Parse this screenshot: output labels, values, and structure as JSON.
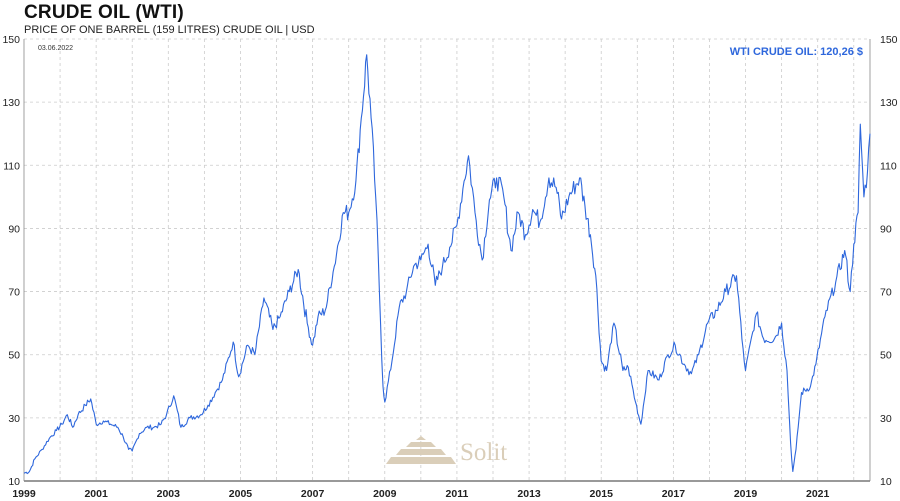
{
  "header": {
    "title": "CRUDE OIL (WTI)",
    "subtitle": "PRICE OF ONE BARREL (159 LITRES) CRUDE OIL | USD"
  },
  "date_label": "03.06.2022",
  "current_label": "WTI CRUDE OIL: 120,26 $",
  "watermark": {
    "text": "Solit",
    "icon": "pyramid-logo-icon"
  },
  "colors": {
    "line": "#2e67dc",
    "current_label": "#2e67dc",
    "grid": "#cccccc",
    "watermark": "#d9ccb6"
  },
  "chart_data": {
    "type": "line",
    "title": "CRUDE OIL (WTI)",
    "subtitle": "PRICE OF ONE BARREL (159 LITRES) CRUDE OIL | USD",
    "xlabel": "",
    "ylabel": "",
    "xlim": [
      1999.0,
      2022.45
    ],
    "ylim": [
      10,
      150
    ],
    "x_ticks": [
      "1999",
      "2001",
      "2003",
      "2005",
      "2007",
      "2009",
      "2011",
      "2013",
      "2015",
      "2017",
      "2019",
      "2021"
    ],
    "y_ticks": [
      10,
      30,
      50,
      70,
      90,
      110,
      130,
      150
    ],
    "grid": true,
    "y_axis_both_sides": true,
    "series": [
      {
        "points": [
          [
            1999.0,
            12.5
          ],
          [
            1999.15,
            13
          ],
          [
            1999.3,
            17
          ],
          [
            1999.5,
            20
          ],
          [
            1999.7,
            23.5
          ],
          [
            1999.9,
            26
          ],
          [
            2000.05,
            28
          ],
          [
            2000.2,
            31
          ],
          [
            2000.35,
            27
          ],
          [
            2000.5,
            31
          ],
          [
            2000.7,
            34
          ],
          [
            2000.85,
            36
          ],
          [
            2001.0,
            28
          ],
          [
            2001.2,
            29
          ],
          [
            2001.4,
            28
          ],
          [
            2001.6,
            27
          ],
          [
            2001.75,
            24
          ],
          [
            2001.9,
            20
          ],
          [
            2002.0,
            19.5
          ],
          [
            2002.2,
            25
          ],
          [
            2002.4,
            27
          ],
          [
            2002.6,
            27
          ],
          [
            2002.8,
            28
          ],
          [
            2002.95,
            31
          ],
          [
            2003.15,
            37
          ],
          [
            2003.35,
            27
          ],
          [
            2003.6,
            30
          ],
          [
            2003.9,
            31
          ],
          [
            2004.1,
            34
          ],
          [
            2004.3,
            38
          ],
          [
            2004.5,
            42
          ],
          [
            2004.8,
            54
          ],
          [
            2004.95,
            43
          ],
          [
            2005.2,
            53
          ],
          [
            2005.4,
            50
          ],
          [
            2005.65,
            68
          ],
          [
            2005.9,
            58
          ],
          [
            2006.1,
            62
          ],
          [
            2006.35,
            70
          ],
          [
            2006.6,
            77
          ],
          [
            2006.85,
            60
          ],
          [
            2007.0,
            53
          ],
          [
            2007.15,
            62
          ],
          [
            2007.35,
            64
          ],
          [
            2007.6,
            78
          ],
          [
            2007.85,
            95
          ],
          [
            2008.0,
            95
          ],
          [
            2008.2,
            105
          ],
          [
            2008.35,
            125
          ],
          [
            2008.5,
            145
          ],
          [
            2008.62,
            125
          ],
          [
            2008.75,
            100
          ],
          [
            2008.85,
            70
          ],
          [
            2008.95,
            40
          ],
          [
            2009.0,
            35
          ],
          [
            2009.2,
            48
          ],
          [
            2009.4,
            65
          ],
          [
            2009.6,
            70
          ],
          [
            2009.8,
            78
          ],
          [
            2010.0,
            80
          ],
          [
            2010.2,
            85
          ],
          [
            2010.4,
            72
          ],
          [
            2010.6,
            78
          ],
          [
            2010.8,
            84
          ],
          [
            2011.0,
            91
          ],
          [
            2011.2,
            105
          ],
          [
            2011.32,
            113
          ],
          [
            2011.5,
            95
          ],
          [
            2011.7,
            80
          ],
          [
            2011.9,
            99
          ],
          [
            2012.1,
            106
          ],
          [
            2012.3,
            100
          ],
          [
            2012.5,
            83
          ],
          [
            2012.7,
            95
          ],
          [
            2012.9,
            88
          ],
          [
            2013.1,
            96
          ],
          [
            2013.3,
            92
          ],
          [
            2013.55,
            106
          ],
          [
            2013.75,
            103
          ],
          [
            2013.9,
            93
          ],
          [
            2014.1,
            100
          ],
          [
            2014.4,
            106
          ],
          [
            2014.55,
            97
          ],
          [
            2014.7,
            88
          ],
          [
            2014.85,
            75
          ],
          [
            2015.0,
            48
          ],
          [
            2015.15,
            45
          ],
          [
            2015.35,
            60
          ],
          [
            2015.6,
            45
          ],
          [
            2015.75,
            46
          ],
          [
            2015.95,
            35
          ],
          [
            2016.1,
            28
          ],
          [
            2016.3,
            45
          ],
          [
            2016.6,
            42
          ],
          [
            2016.85,
            50
          ],
          [
            2017.05,
            53
          ],
          [
            2017.3,
            47
          ],
          [
            2017.5,
            44
          ],
          [
            2017.7,
            50
          ],
          [
            2017.95,
            60
          ],
          [
            2018.2,
            64
          ],
          [
            2018.45,
            70
          ],
          [
            2018.75,
            75
          ],
          [
            2018.9,
            55
          ],
          [
            2019.0,
            45
          ],
          [
            2019.3,
            63
          ],
          [
            2019.5,
            55
          ],
          [
            2019.8,
            55
          ],
          [
            2020.0,
            60
          ],
          [
            2020.15,
            45
          ],
          [
            2020.25,
            22
          ],
          [
            2020.31,
            13
          ],
          [
            2020.4,
            20
          ],
          [
            2020.55,
            38
          ],
          [
            2020.8,
            40
          ],
          [
            2020.95,
            47
          ],
          [
            2021.2,
            62
          ],
          [
            2021.5,
            73
          ],
          [
            2021.75,
            83
          ],
          [
            2021.9,
            70
          ],
          [
            2022.0,
            85
          ],
          [
            2022.12,
            95
          ],
          [
            2022.18,
            123
          ],
          [
            2022.28,
            100
          ],
          [
            2022.38,
            108
          ],
          [
            2022.45,
            120
          ]
        ]
      }
    ]
  }
}
